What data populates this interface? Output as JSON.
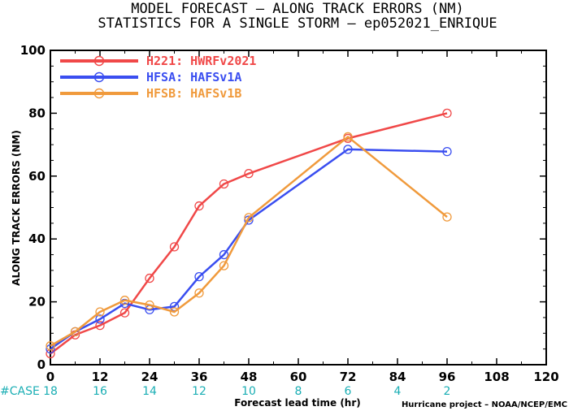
{
  "chart_data": {
    "type": "line",
    "title": "MODEL FORECAST – ALONG TRACK ERRORS (NM)",
    "subtitle": "STATISTICS FOR A SINGLE STORM – ep052021_ENRIQUE",
    "xlabel": "Forecast lead time (hr)",
    "ylabel": "ALONG TRACK ERRORS (NM)",
    "xlim": [
      0,
      120
    ],
    "ylim": [
      0,
      100
    ],
    "xticks": [
      0,
      12,
      24,
      36,
      48,
      60,
      72,
      84,
      96,
      108,
      120
    ],
    "yticks": [
      0,
      20,
      40,
      60,
      80,
      100
    ],
    "legend_position": "top-left",
    "grid": false,
    "series": [
      {
        "name": "H221: HWRFv2021",
        "color": "#f04848",
        "x": [
          0,
          6,
          12,
          18,
          24,
          30,
          36,
          42,
          48,
          72,
          96
        ],
        "y": [
          3.5,
          9.5,
          12.5,
          16.5,
          27.5,
          37.5,
          50.5,
          57.5,
          60.8,
          72,
          80
        ]
      },
      {
        "name": "HFSA: HAFSv1A",
        "color": "#3a4ef0",
        "x": [
          0,
          6,
          12,
          18,
          24,
          30,
          36,
          42,
          48,
          72,
          96
        ],
        "y": [
          5,
          10.5,
          14.5,
          19.5,
          17.5,
          18.5,
          28,
          35,
          46,
          68.5,
          67.8
        ]
      },
      {
        "name": "HFSB: HAFSv1B",
        "color": "#f09a3c",
        "x": [
          0,
          6,
          12,
          18,
          24,
          30,
          36,
          42,
          48,
          72,
          96
        ],
        "y": [
          6,
          10.5,
          16.8,
          20.5,
          19,
          16.8,
          22.8,
          31.5,
          46.8,
          72.5,
          47
        ]
      }
    ],
    "cases": {
      "label": "#CASE",
      "x": [
        0,
        12,
        24,
        36,
        48,
        60,
        72,
        84,
        96
      ],
      "counts": [
        "18",
        "16",
        "14",
        "12",
        "10",
        "8",
        "6",
        "4",
        "2"
      ],
      "color": "#1aaeb4"
    },
    "credit": "Hurricane project – NOAA/NCEP/EMC"
  }
}
